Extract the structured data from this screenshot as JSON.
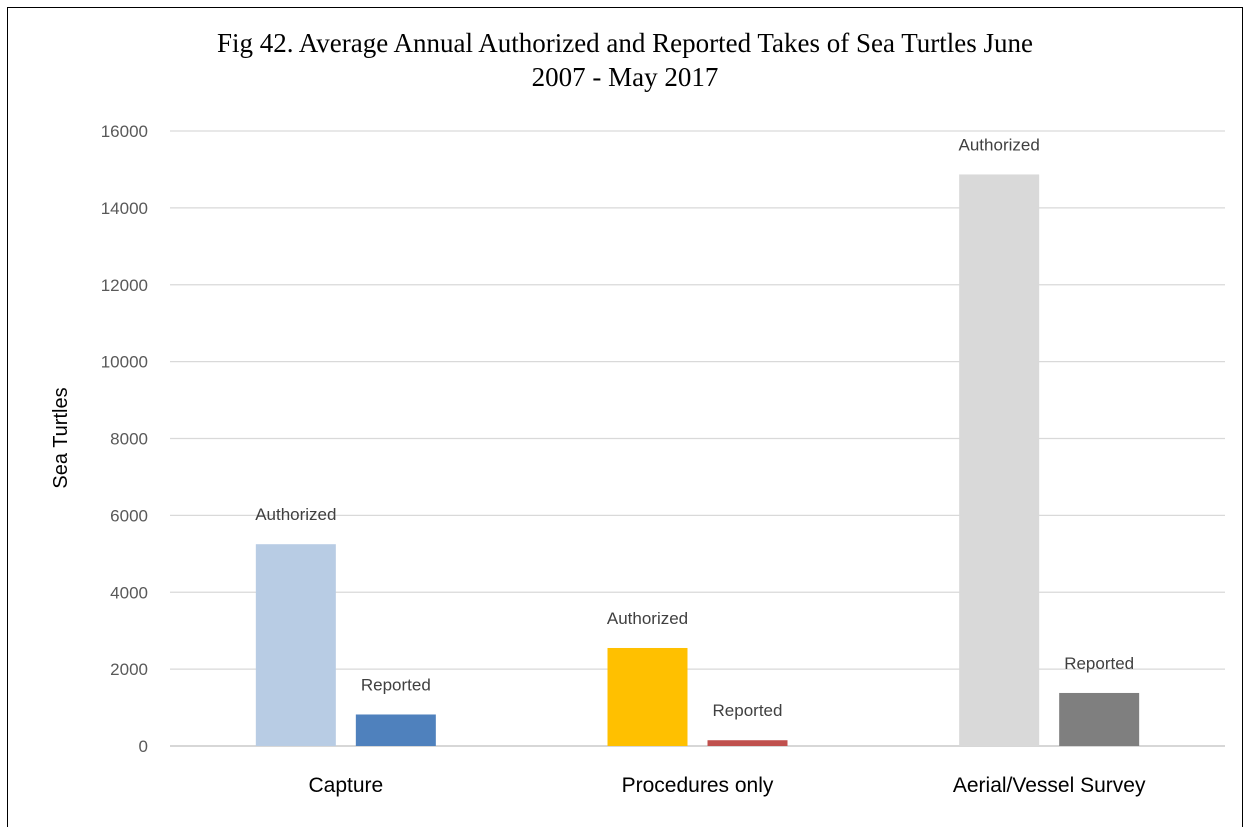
{
  "chart_data": {
    "type": "bar",
    "title_lines": [
      "Fig 42. Average Annual Authorized and Reported Takes of Sea Turtles June",
      "2007 - May 2017"
    ],
    "ylabel": "Sea Turtles",
    "xlabel": "",
    "ylim": [
      0,
      16000
    ],
    "yticks": [
      0,
      2000,
      4000,
      6000,
      8000,
      10000,
      12000,
      14000,
      16000
    ],
    "grid": true,
    "legend": "none",
    "categories": [
      "Capture",
      "Procedures only",
      "Aerial/Vessel Survey"
    ],
    "bars": [
      [
        {
          "label": "Authorized",
          "value": 5250,
          "color": "#b8cce4"
        },
        {
          "label": "Reported",
          "value": 820,
          "color": "#4f81bd"
        }
      ],
      [
        {
          "label": "Authorized",
          "value": 2550,
          "color": "#ffc000"
        },
        {
          "label": "Reported",
          "value": 150,
          "color": "#c0504d"
        }
      ],
      [
        {
          "label": "Authorized",
          "value": 14870,
          "color": "#d9d9d9"
        },
        {
          "label": "Reported",
          "value": 1380,
          "color": "#7f7f7f"
        }
      ]
    ]
  }
}
